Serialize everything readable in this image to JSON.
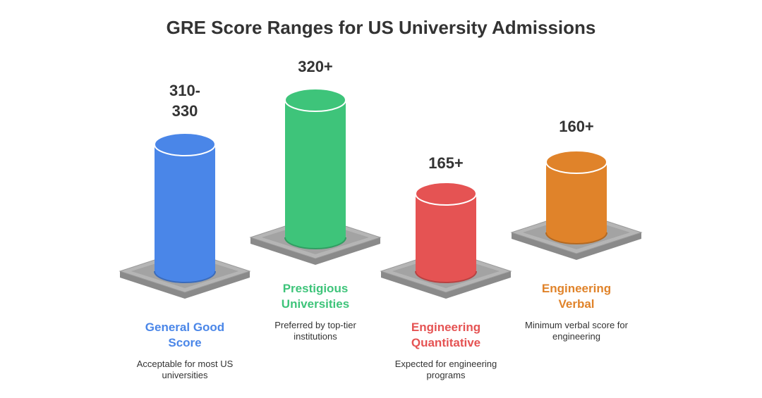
{
  "title": "GRE Score Ranges for US University Admissions",
  "items": [
    {
      "score": "310-330",
      "label": "General Good Score",
      "description": "Acceptable for most US universities",
      "color": "#4a86e8"
    },
    {
      "score": "320+",
      "label": "Prestigious Universities",
      "description": "Preferred by top-tier institutions",
      "color": "#3ec47a"
    },
    {
      "score": "165+",
      "label": "Engineering Quantitative",
      "description": "Expected for engineering programs",
      "color": "#e55353"
    },
    {
      "score": "160+",
      "label": "Engineering Verbal",
      "description": "Minimum verbal score for engineering",
      "color": "#e0832a"
    }
  ]
}
